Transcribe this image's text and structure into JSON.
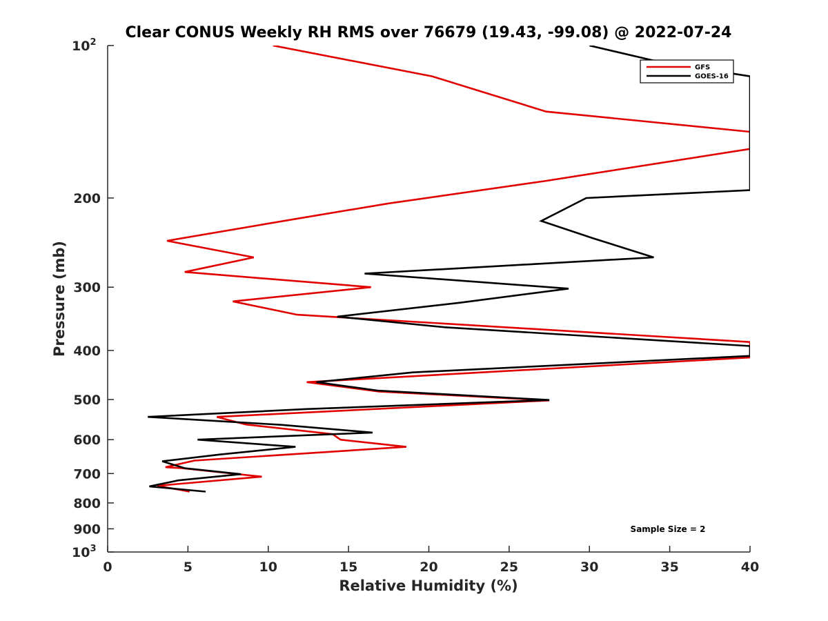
{
  "chart_data": {
    "type": "line",
    "title": "Clear CONUS Weekly RH RMS over 76679 (19.43, -99.08) @ 2022-07-24",
    "xlabel": "Relative Humidity (%)",
    "ylabel": "Pressure (mb)",
    "xlim": [
      0,
      40
    ],
    "ylim": [
      100,
      1000
    ],
    "y_scale": "log",
    "y_reversed": true,
    "grid": false,
    "legend_position": "top-right",
    "x_ticks": [
      "0",
      "5",
      "10",
      "15",
      "20",
      "25",
      "30",
      "35",
      "40"
    ],
    "y_ticks": [
      {
        "value": 100,
        "base": "10",
        "exp": "2"
      },
      {
        "value": 200,
        "label": "200"
      },
      {
        "value": 300,
        "label": "300"
      },
      {
        "value": 400,
        "label": "400"
      },
      {
        "value": 500,
        "label": "500"
      },
      {
        "value": 600,
        "label": "600"
      },
      {
        "value": 700,
        "label": "700"
      },
      {
        "value": 800,
        "label": "800"
      },
      {
        "value": 900,
        "label": "900"
      },
      {
        "value": 1000,
        "base": "10",
        "exp": "3"
      }
    ],
    "series": [
      {
        "name": "GFS",
        "color": "#e00000",
        "points": [
          [
            10.3,
            100
          ],
          [
            20.2,
            115
          ],
          [
            27.3,
            135
          ],
          [
            40,
            148
          ],
          [
            40,
            160
          ],
          [
            27.3,
            185
          ],
          [
            17.5,
            205
          ],
          [
            11.7,
            220
          ],
          [
            3.7,
            243
          ],
          [
            9.1,
            262
          ],
          [
            4.8,
            280
          ],
          [
            16.4,
            300
          ],
          [
            7.8,
            320
          ],
          [
            11.8,
            340
          ],
          [
            40,
            385
          ],
          [
            40,
            413
          ],
          [
            12.4,
            462
          ],
          [
            16.9,
            482
          ],
          [
            27.5,
            502
          ],
          [
            6.8,
            541
          ],
          [
            8.6,
            560
          ],
          [
            14.0,
            585
          ],
          [
            14.5,
            600
          ],
          [
            18.6,
            620
          ],
          [
            5.4,
            660
          ],
          [
            3.6,
            680
          ],
          [
            4.6,
            683
          ],
          [
            9.6,
            710
          ],
          [
            3.1,
            740
          ],
          [
            5.1,
            760
          ]
        ]
      },
      {
        "name": "GOES-16",
        "color": "#000000",
        "points": [
          [
            30.0,
            100
          ],
          [
            34.5,
            108
          ],
          [
            40,
            115
          ],
          [
            40,
            193
          ],
          [
            29.8,
            200
          ],
          [
            27.0,
            222
          ],
          [
            30.2,
            240
          ],
          [
            34.0,
            262
          ],
          [
            16.0,
            282
          ],
          [
            28.7,
            302
          ],
          [
            21.9,
            322
          ],
          [
            14.3,
            343
          ],
          [
            21.0,
            360
          ],
          [
            40,
            392
          ],
          [
            40,
            410
          ],
          [
            19.0,
            442
          ],
          [
            13.0,
            462
          ],
          [
            16.8,
            480
          ],
          [
            27.5,
            501
          ],
          [
            12.4,
            522
          ],
          [
            2.5,
            541
          ],
          [
            10.8,
            561
          ],
          [
            16.5,
            581
          ],
          [
            5.6,
            600
          ],
          [
            11.7,
            620
          ],
          [
            7.0,
            642
          ],
          [
            3.4,
            662
          ],
          [
            4.8,
            683
          ],
          [
            8.3,
            702
          ],
          [
            4.4,
            722
          ],
          [
            2.6,
            742
          ],
          [
            6.1,
            760
          ]
        ]
      }
    ],
    "annotation": "Sample Size = 2"
  }
}
